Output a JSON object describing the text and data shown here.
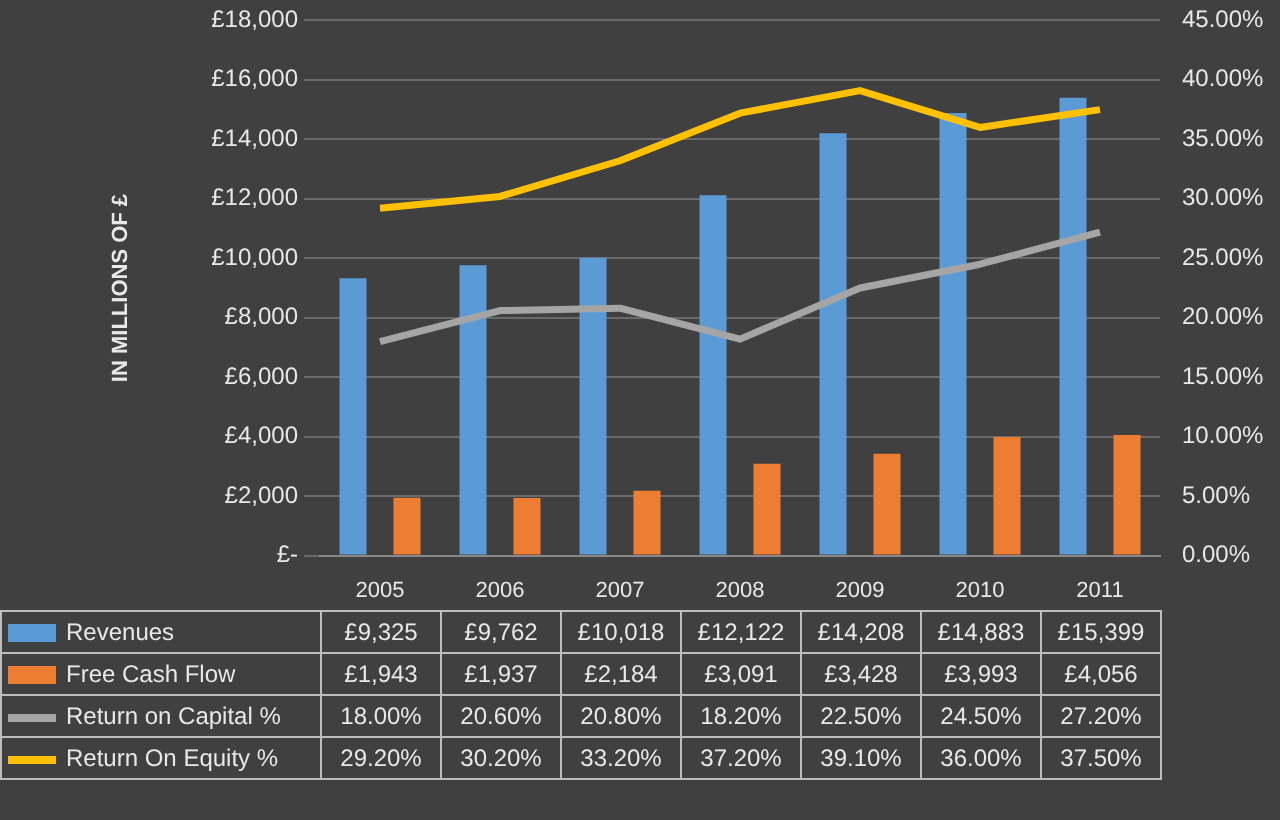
{
  "chart_data": {
    "type": "bar",
    "ylabel": "IN MILLIONS OF £",
    "categories": [
      "2005",
      "2006",
      "2007",
      "2008",
      "2009",
      "2010",
      "2011"
    ],
    "series": [
      {
        "name": "Revenues",
        "color": "#5b9bd5",
        "values": [
          9325,
          9762,
          10018,
          12122,
          14208,
          14883,
          15399
        ],
        "value_labels": [
          "£9,325",
          "£9,762",
          "£10,018",
          "£12,122",
          "£14,208",
          "£14,883",
          "£15,399"
        ]
      },
      {
        "name": "Free Cash Flow",
        "color": "#ed7d31",
        "values": [
          1943,
          1937,
          2184,
          3091,
          3428,
          3993,
          4056
        ],
        "value_labels": [
          "£1,943",
          "£1,937",
          "£2,184",
          "£3,091",
          "£3,428",
          "£3,993",
          "£4,056"
        ]
      },
      {
        "name": "Return on Capital %",
        "type": "line",
        "axis": "y2",
        "color": "#a5a5a5",
        "values": [
          18.0,
          20.6,
          20.8,
          18.2,
          22.5,
          24.5,
          27.2
        ],
        "value_labels": [
          "18.00%",
          "20.60%",
          "20.80%",
          "18.20%",
          "22.50%",
          "24.50%",
          "27.20%"
        ]
      },
      {
        "name": "Return On Equity %",
        "type": "line",
        "axis": "y2",
        "color": "#ffc000",
        "values": [
          29.2,
          30.2,
          33.2,
          37.2,
          39.1,
          36.0,
          37.5
        ],
        "value_labels": [
          "29.20%",
          "30.20%",
          "33.20%",
          "37.20%",
          "39.10%",
          "36.00%",
          "37.50%"
        ]
      }
    ],
    "ylim": [
      0,
      18000
    ],
    "yticks": [
      {
        "value": 0,
        "label": "£-"
      },
      {
        "value": 2000,
        "label": "£2,000"
      },
      {
        "value": 4000,
        "label": "£4,000"
      },
      {
        "value": 6000,
        "label": "£6,000"
      },
      {
        "value": 8000,
        "label": "£8,000"
      },
      {
        "value": 10000,
        "label": "£10,000"
      },
      {
        "value": 12000,
        "label": "£12,000"
      },
      {
        "value": 14000,
        "label": "£14,000"
      },
      {
        "value": 16000,
        "label": "£16,000"
      },
      {
        "value": 18000,
        "label": "£18,000"
      }
    ],
    "y2lim": [
      0,
      45
    ],
    "y2ticks": [
      {
        "value": 0,
        "label": "0.00%"
      },
      {
        "value": 5,
        "label": "5.00%"
      },
      {
        "value": 10,
        "label": "10.00%"
      },
      {
        "value": 15,
        "label": "15.00%"
      },
      {
        "value": 20,
        "label": "20.00%"
      },
      {
        "value": 25,
        "label": "25.00%"
      },
      {
        "value": 30,
        "label": "30.00%"
      },
      {
        "value": 35,
        "label": "35.00%"
      },
      {
        "value": 40,
        "label": "40.00%"
      },
      {
        "value": 45,
        "label": "45.00%"
      }
    ],
    "grid": "y",
    "legend": "bottom",
    "marker": "none",
    "line_style": "solid"
  }
}
